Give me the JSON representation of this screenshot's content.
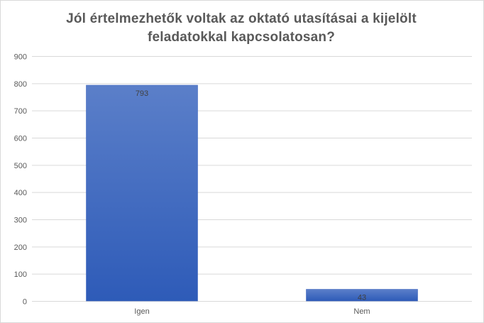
{
  "chart_data": {
    "type": "bar",
    "title_lines": [
      "Jól értelmezhetők voltak az oktató utasításai  a kijelölt",
      "feladatokkal  kapcsolatosan?"
    ],
    "categories": [
      "Igen",
      "Nem"
    ],
    "values": [
      793,
      43
    ],
    "data_labels": [
      "793",
      "43"
    ],
    "ylim": [
      0,
      900
    ],
    "yticks": [
      0,
      100,
      200,
      300,
      400,
      500,
      600,
      700,
      800,
      900
    ],
    "grid": true,
    "legend": "none",
    "colors": {
      "bar_top": "#5b7fc9",
      "bar_bottom": "#2e5bb8",
      "bar_border": "#3f66bf",
      "grid": "#d9d9d9",
      "tick_text": "#595959",
      "label_text": "#404040",
      "title_text": "#595959"
    }
  }
}
